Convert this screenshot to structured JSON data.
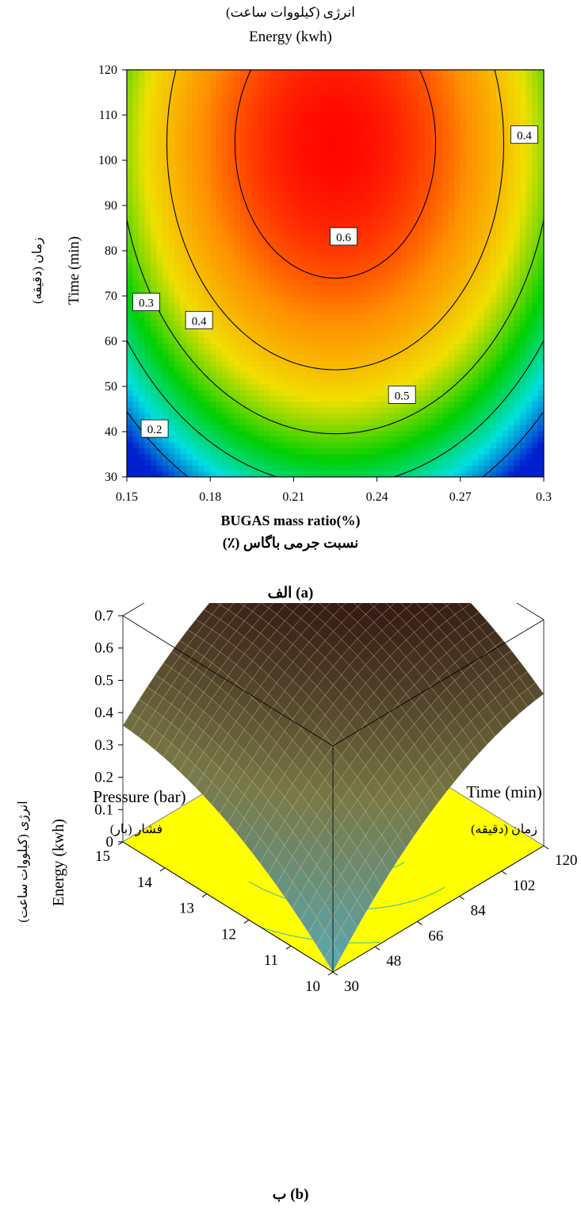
{
  "figure": {
    "caption_a": "الف (a)",
    "caption_b": "ب (b)"
  },
  "chart_data": [
    {
      "type": "heatmap",
      "subtype": "contour",
      "title": "Energy (kwh)",
      "title_fa": "انرژی (کیلووات ساعت)",
      "xlabel": "BUGAS mass ratio(%)",
      "xlabel_fa": "نسبت جرمی باگاس (٪)",
      "ylabel": "Time (min)",
      "ylabel_fa": "زمان (دقیقه)",
      "xlim": [
        0.15,
        0.3
      ],
      "ylim": [
        30,
        120
      ],
      "x_ticks": [
        0.15,
        0.18,
        0.21,
        0.24,
        0.27,
        0.3
      ],
      "x_tick_labels": [
        "0.15",
        "0.18",
        "0.21",
        "0.24",
        "0.27",
        "0.3"
      ],
      "y_ticks": [
        30,
        40,
        50,
        60,
        70,
        80,
        90,
        100,
        110,
        120
      ],
      "y_tick_labels": [
        "30",
        "40",
        "50",
        "60",
        "70",
        "80",
        "90",
        "100",
        "110",
        "120"
      ],
      "colormap": [
        "#0020d0",
        "#00e0e0",
        "#00d000",
        "#f0e000",
        "#ff9000",
        "#ff0000"
      ],
      "zlim": [
        0.15,
        0.66
      ],
      "contour_levels": [
        0.2,
        0.3,
        0.4,
        0.5,
        0.6
      ],
      "contour_labels": [
        {
          "text": "0.4",
          "x": 0.293,
          "y": 105.5
        },
        {
          "text": "0.6",
          "x": 0.228,
          "y": 83
        },
        {
          "text": "0.3",
          "x": 0.157,
          "y": 68.5
        },
        {
          "text": "0.4",
          "x": 0.176,
          "y": 64.5
        },
        {
          "text": "0.5",
          "x": 0.249,
          "y": 48
        },
        {
          "text": "0.2",
          "x": 0.16,
          "y": 40.5
        }
      ]
    },
    {
      "type": "surface3d",
      "zlabel": "Energy (kwh)",
      "zlabel_fa": "انرژی (کیلووات ساعت)",
      "xlabel": "Pressure (bar)",
      "xlabel_fa": "فشار (بار)",
      "ylabel": "Time (min)",
      "ylabel_fa": "زمان (دقیقه)",
      "xlim": [
        10,
        15
      ],
      "ylim": [
        30,
        120
      ],
      "zlim": [
        0,
        0.7
      ],
      "x_ticks": [
        10,
        11,
        12,
        13,
        14,
        15
      ],
      "x_tick_labels": [
        "10",
        "11",
        "12",
        "13",
        "14",
        "15"
      ],
      "y_ticks": [
        30,
        48,
        66,
        84,
        102,
        120
      ],
      "y_tick_labels": [
        "30",
        "48",
        "66",
        "84",
        "102",
        "120"
      ],
      "z_ticks": [
        0,
        0.1,
        0.2,
        0.3,
        0.4,
        0.5,
        0.6,
        0.7
      ],
      "z_tick_labels": [
        "0",
        "0.1",
        "0.2",
        "0.3",
        "0.4",
        "0.5",
        "0.6",
        "0.7"
      ],
      "floor_color": "#ffff00",
      "floor_contour_color": "#30c0a0",
      "corner_values": [
        {
          "pressure": 10,
          "time": 30,
          "energy": 0.0
        },
        {
          "pressure": 15,
          "time": 30,
          "energy": 0.36
        },
        {
          "pressure": 10,
          "time": 120,
          "energy": 0.47
        },
        {
          "pressure": 15,
          "time": 120,
          "energy": 0.67
        }
      ]
    }
  ]
}
